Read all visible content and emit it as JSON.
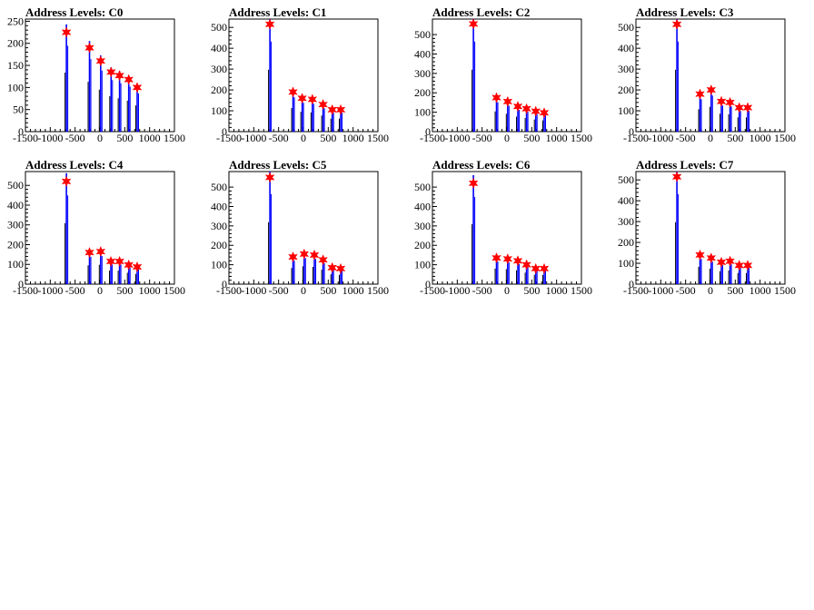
{
  "chart_data": [
    {
      "type": "histogram",
      "title": "Address Levels: C0",
      "x_ticks": [
        -1500,
        -1000,
        -500,
        0,
        500,
        1000,
        1500
      ],
      "y_ticks": [
        0,
        50,
        100,
        150,
        200,
        250
      ],
      "xlim": [
        -1500,
        1500
      ],
      "ylim": [
        0,
        255
      ],
      "histogram_color": "#0000ff",
      "peak_marker_color": "#ff0000",
      "peaks": [
        {
          "x": -675,
          "y": 225
        },
        {
          "x": -210,
          "y": 190
        },
        {
          "x": 15,
          "y": 160
        },
        {
          "x": 225,
          "y": 135
        },
        {
          "x": 395,
          "y": 127
        },
        {
          "x": 580,
          "y": 118
        },
        {
          "x": 750,
          "y": 100
        }
      ]
    },
    {
      "type": "histogram",
      "title": "Address Levels: C1",
      "x_ticks": [
        -1500,
        -1000,
        -500,
        0,
        500,
        1000,
        1500
      ],
      "y_ticks": [
        0,
        100,
        200,
        300,
        400,
        500
      ],
      "xlim": [
        -1500,
        1500
      ],
      "ylim": [
        0,
        540
      ],
      "histogram_color": "#0000ff",
      "peak_marker_color": "#ff0000",
      "peaks": [
        {
          "x": -675,
          "y": 515
        },
        {
          "x": -210,
          "y": 190
        },
        {
          "x": -25,
          "y": 160
        },
        {
          "x": 180,
          "y": 155
        },
        {
          "x": 395,
          "y": 130
        },
        {
          "x": 580,
          "y": 105
        },
        {
          "x": 750,
          "y": 105
        }
      ]
    },
    {
      "type": "histogram",
      "title": "Address Levels: C2",
      "x_ticks": [
        -1500,
        -1000,
        -500,
        0,
        500,
        1000,
        1500
      ],
      "y_ticks": [
        0,
        100,
        200,
        300,
        400,
        500
      ],
      "xlim": [
        -1500,
        1500
      ],
      "ylim": [
        0,
        580
      ],
      "histogram_color": "#0000ff",
      "peak_marker_color": "#ff0000",
      "peaks": [
        {
          "x": -675,
          "y": 555
        },
        {
          "x": -210,
          "y": 175
        },
        {
          "x": 15,
          "y": 155
        },
        {
          "x": 220,
          "y": 130
        },
        {
          "x": 395,
          "y": 118
        },
        {
          "x": 580,
          "y": 105
        },
        {
          "x": 750,
          "y": 97
        }
      ]
    },
    {
      "type": "histogram",
      "title": "Address Levels: C3",
      "x_ticks": [
        -1500,
        -1000,
        -500,
        0,
        500,
        1000,
        1500
      ],
      "y_ticks": [
        0,
        100,
        200,
        300,
        400,
        500
      ],
      "xlim": [
        -1500,
        1500
      ],
      "ylim": [
        0,
        540
      ],
      "histogram_color": "#0000ff",
      "peak_marker_color": "#ff0000",
      "peaks": [
        {
          "x": -675,
          "y": 515
        },
        {
          "x": -210,
          "y": 180
        },
        {
          "x": 15,
          "y": 200
        },
        {
          "x": 220,
          "y": 145
        },
        {
          "x": 395,
          "y": 140
        },
        {
          "x": 580,
          "y": 115
        },
        {
          "x": 750,
          "y": 115
        }
      ]
    },
    {
      "type": "histogram",
      "title": "Address Levels: C4",
      "x_ticks": [
        -1500,
        -1000,
        -500,
        0,
        500,
        1000,
        1500
      ],
      "y_ticks": [
        0,
        100,
        200,
        300,
        400,
        500
      ],
      "xlim": [
        -1500,
        1500
      ],
      "ylim": [
        0,
        570
      ],
      "histogram_color": "#0000ff",
      "peak_marker_color": "#ff0000",
      "peaks": [
        {
          "x": -675,
          "y": 520
        },
        {
          "x": -210,
          "y": 160
        },
        {
          "x": 15,
          "y": 165
        },
        {
          "x": 220,
          "y": 115
        },
        {
          "x": 395,
          "y": 115
        },
        {
          "x": 580,
          "y": 97
        },
        {
          "x": 750,
          "y": 87
        }
      ]
    },
    {
      "type": "histogram",
      "title": "Address Levels: C5",
      "x_ticks": [
        -1500,
        -1000,
        -500,
        0,
        500,
        1000,
        1500
      ],
      "y_ticks": [
        0,
        100,
        200,
        300,
        400,
        500
      ],
      "xlim": [
        -1500,
        1500
      ],
      "ylim": [
        0,
        580
      ],
      "histogram_color": "#0000ff",
      "peak_marker_color": "#ff0000",
      "peaks": [
        {
          "x": -675,
          "y": 550
        },
        {
          "x": -210,
          "y": 140
        },
        {
          "x": 15,
          "y": 155
        },
        {
          "x": 220,
          "y": 150
        },
        {
          "x": 395,
          "y": 125
        },
        {
          "x": 580,
          "y": 85
        },
        {
          "x": 750,
          "y": 80
        }
      ]
    },
    {
      "type": "histogram",
      "title": "Address Levels: C6",
      "x_ticks": [
        -1500,
        -1000,
        -500,
        0,
        500,
        1000,
        1500
      ],
      "y_ticks": [
        0,
        100,
        200,
        300,
        400,
        500
      ],
      "xlim": [
        -1500,
        1500
      ],
      "ylim": [
        0,
        580
      ],
      "histogram_color": "#0000ff",
      "peak_marker_color": "#ff0000",
      "peaks": [
        {
          "x": -675,
          "y": 520
        },
        {
          "x": -210,
          "y": 135
        },
        {
          "x": 15,
          "y": 130
        },
        {
          "x": 220,
          "y": 120
        },
        {
          "x": 395,
          "y": 100
        },
        {
          "x": 580,
          "y": 80
        },
        {
          "x": 750,
          "y": 80
        }
      ]
    },
    {
      "type": "histogram",
      "title": "Address Levels: C7",
      "x_ticks": [
        -1500,
        -1000,
        -500,
        0,
        500,
        1000,
        1500
      ],
      "y_ticks": [
        0,
        100,
        200,
        300,
        400,
        500
      ],
      "xlim": [
        -1500,
        1500
      ],
      "ylim": [
        0,
        540
      ],
      "histogram_color": "#0000ff",
      "peak_marker_color": "#ff0000",
      "peaks": [
        {
          "x": -675,
          "y": 515
        },
        {
          "x": -210,
          "y": 140
        },
        {
          "x": 15,
          "y": 125
        },
        {
          "x": 220,
          "y": 105
        },
        {
          "x": 395,
          "y": 110
        },
        {
          "x": 580,
          "y": 90
        },
        {
          "x": 750,
          "y": 90
        }
      ]
    }
  ]
}
